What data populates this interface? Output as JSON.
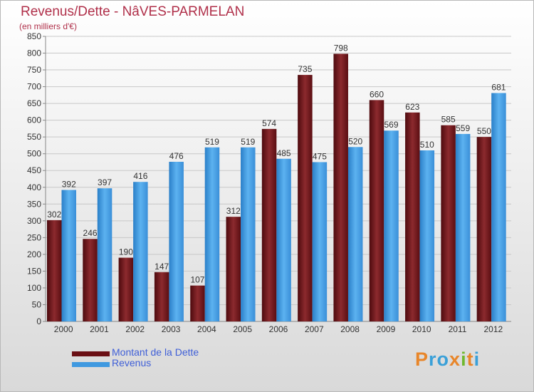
{
  "title": "Revenus/Dette - NâVES-PARMELAN",
  "subtitle": "(en milliers d'€)",
  "logo": {
    "text": "Proxiti",
    "colors": [
      "#e8862a",
      "#3aa0d8",
      "#3aa0d8",
      "#e8862a",
      "#6fb82e",
      "#e8862a",
      "#3aa0d8"
    ]
  },
  "chart_data": {
    "type": "bar",
    "categories": [
      "2000",
      "2001",
      "2002",
      "2003",
      "2004",
      "2005",
      "2006",
      "2007",
      "2008",
      "2009",
      "2010",
      "2011",
      "2012"
    ],
    "series": [
      {
        "name": "Montant de la Dette",
        "color": "#7a1a1e",
        "values": [
          302,
          246,
          190,
          147,
          107,
          312,
          574,
          735,
          798,
          660,
          623,
          585,
          550
        ]
      },
      {
        "name": "Revenus",
        "color": "#3f99e0",
        "values": [
          392,
          397,
          416,
          476,
          519,
          519,
          485,
          475,
          520,
          569,
          510,
          559,
          681
        ]
      }
    ],
    "ylim": [
      0,
      850
    ],
    "yticks": [
      0,
      50,
      100,
      150,
      200,
      250,
      300,
      350,
      400,
      450,
      500,
      550,
      600,
      650,
      700,
      750,
      800,
      850
    ],
    "grid": true,
    "legend": "bottom-left"
  }
}
